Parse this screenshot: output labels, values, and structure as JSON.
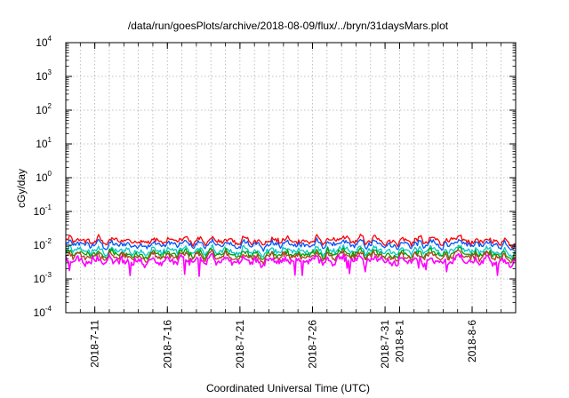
{
  "chart_data": {
    "type": "line",
    "title": "/data/run/goesPlots/archive/2018-08-09/flux/../bryn/31daysMars.plot",
    "xlabel": "Coordinated Universal Time (UTC)",
    "ylabel": "cGy/day",
    "yscale": "log",
    "ylim": [
      0.0001,
      10000
    ],
    "xlim": [
      "2018-07-09",
      "2018-08-09"
    ],
    "x_ticks": [
      "2018-7-11",
      "2018-7-16",
      "2018-7-21",
      "2018-7-26",
      "2018-7-31",
      "2018-8-1",
      "2018-8-6"
    ],
    "y_ticks": [
      {
        "base": "10",
        "exp": "-4"
      },
      {
        "base": "10",
        "exp": "-3"
      },
      {
        "base": "10",
        "exp": "-2"
      },
      {
        "base": "10",
        "exp": "-1"
      },
      {
        "base": "10",
        "exp": "0"
      },
      {
        "base": "10",
        "exp": "1"
      },
      {
        "base": "10",
        "exp": "2"
      },
      {
        "base": "10",
        "exp": "3"
      },
      {
        "base": "10",
        "exp": "4"
      }
    ],
    "grid": true,
    "series": [
      {
        "color": "#ff0000",
        "level": 0.0135,
        "noise": 0.09,
        "values_summary": "approx 0.012-0.02 cGy/day"
      },
      {
        "color": "#0055ff",
        "level": 0.0105,
        "noise": 0.08,
        "values_summary": "approx 0.009-0.015 cGy/day"
      },
      {
        "color": "#00c8c8",
        "level": 0.0068,
        "noise": 0.09,
        "values_summary": "approx 0.005-0.009 cGy/day"
      },
      {
        "color": "#00a000",
        "level": 0.0055,
        "noise": 0.1,
        "values_summary": "approx 0.004-0.008 cGy/day"
      },
      {
        "color": "#b04020",
        "level": 0.0046,
        "noise": 0.11,
        "values_summary": "approx 0.003-0.007 cGy/day"
      },
      {
        "color": "#ff00ff",
        "level": 0.0034,
        "noise": 0.16,
        "values_summary": "approx 0.0007-0.005 cGy/day"
      }
    ]
  }
}
